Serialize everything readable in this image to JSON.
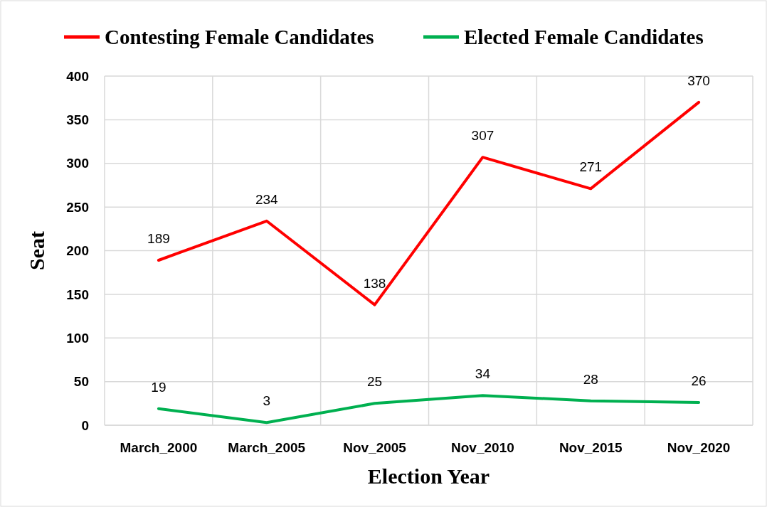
{
  "chart_data": {
    "type": "line",
    "xlabel": "Election Year",
    "ylabel": "Seat",
    "categories": [
      "March_2000",
      "March_2005",
      "Nov_2005",
      "Nov_2010",
      "Nov_2015",
      "Nov_2020"
    ],
    "series": [
      {
        "name": "Contesting Female Candidates",
        "color": "#ff0000",
        "values": [
          189,
          234,
          138,
          307,
          271,
          370
        ]
      },
      {
        "name": "Elected Female Candidates",
        "color": "#00b050",
        "values": [
          19,
          3,
          25,
          34,
          28,
          26
        ]
      }
    ],
    "ylim": [
      0,
      400
    ],
    "yticks": [
      0,
      50,
      100,
      150,
      200,
      250,
      300,
      350,
      400
    ],
    "grid": true,
    "legend": "top",
    "data_labels": true,
    "marker": "none",
    "line_style": "solid"
  }
}
